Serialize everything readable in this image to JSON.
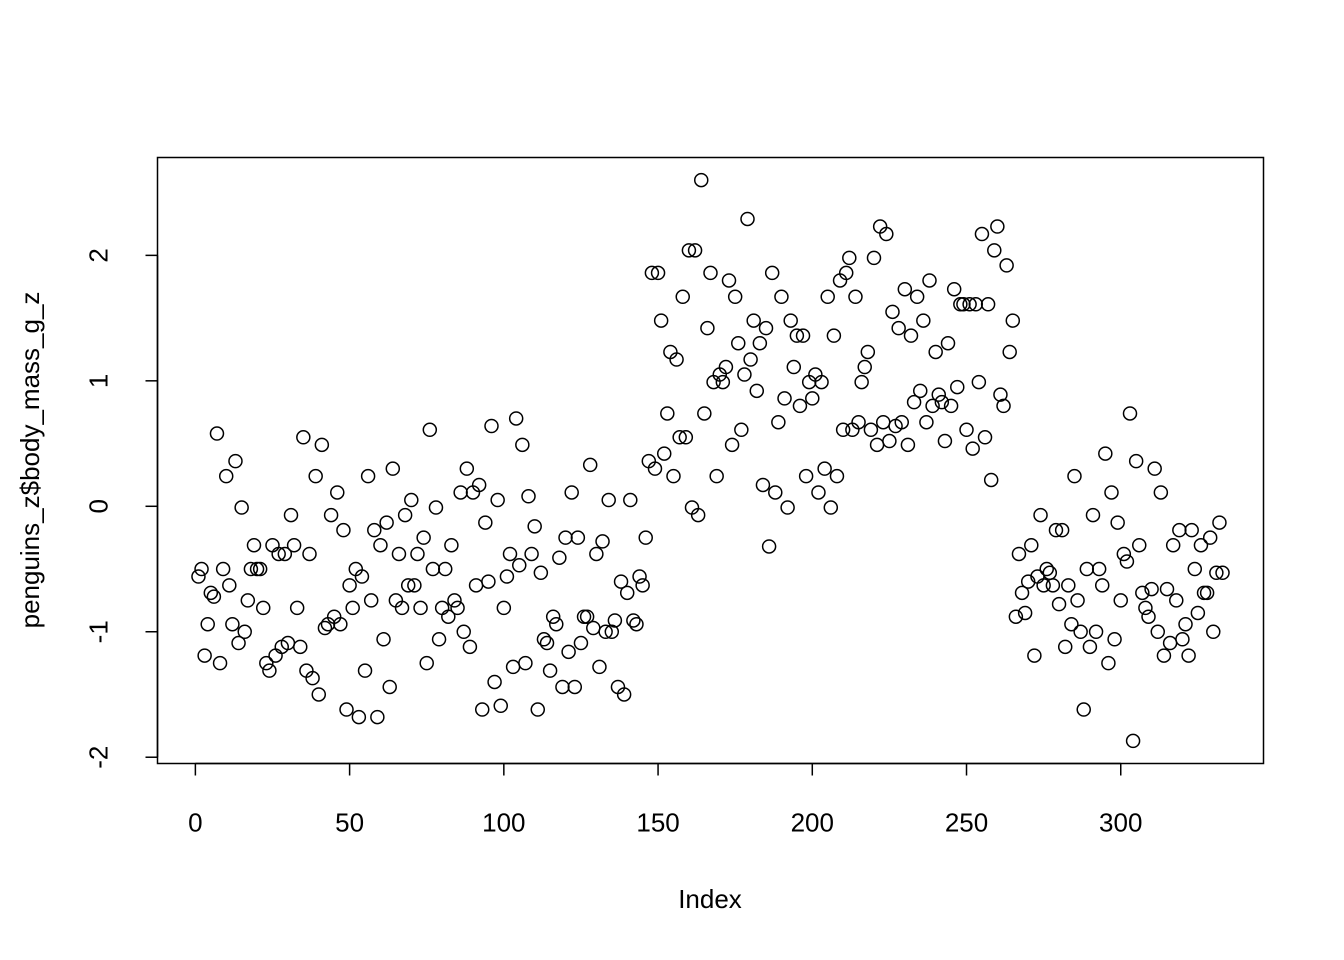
{
  "chart_data": {
    "type": "scatter",
    "x_label": "Index",
    "y_label": "penguins_z$body_mass_g_z",
    "xlim": [
      -12.28,
      346.28
    ],
    "ylim": [
      -2.05,
      2.78
    ],
    "xticks": [
      0,
      50,
      100,
      150,
      200,
      250,
      300
    ],
    "yticks": [
      -2,
      -1,
      0,
      1,
      2
    ],
    "color": "#000000",
    "x": [
      1,
      2,
      3,
      4,
      5,
      6,
      7,
      8,
      9,
      10,
      11,
      12,
      13,
      14,
      15,
      16,
      17,
      18,
      19,
      20,
      21,
      22,
      23,
      24,
      25,
      26,
      27,
      28,
      29,
      30,
      31,
      32,
      33,
      34,
      35,
      36,
      37,
      38,
      39,
      40,
      41,
      42,
      43,
      44,
      45,
      46,
      47,
      48,
      49,
      50,
      51,
      52,
      53,
      54,
      55,
      56,
      57,
      58,
      59,
      60,
      61,
      62,
      63,
      64,
      65,
      66,
      67,
      68,
      69,
      70,
      71,
      72,
      73,
      74,
      75,
      76,
      77,
      78,
      79,
      80,
      81,
      82,
      83,
      84,
      85,
      86,
      87,
      88,
      89,
      90,
      91,
      92,
      93,
      94,
      95,
      96,
      97,
      98,
      99,
      100,
      101,
      102,
      103,
      104,
      105,
      106,
      107,
      108,
      109,
      110,
      111,
      112,
      113,
      114,
      115,
      116,
      117,
      118,
      119,
      120,
      121,
      122,
      123,
      124,
      125,
      126,
      127,
      128,
      129,
      130,
      131,
      132,
      133,
      134,
      135,
      136,
      137,
      138,
      139,
      140,
      141,
      142,
      143,
      144,
      145,
      146,
      147,
      148,
      149,
      150,
      151,
      152,
      153,
      154,
      155,
      156,
      157,
      158,
      159,
      160,
      161,
      162,
      163,
      164,
      165,
      166,
      167,
      168,
      169,
      170,
      171,
      172,
      173,
      174,
      175,
      176,
      177,
      178,
      179,
      180,
      181,
      182,
      183,
      184,
      185,
      186,
      187,
      188,
      189,
      190,
      191,
      192,
      193,
      194,
      195,
      196,
      197,
      198,
      199,
      200,
      201,
      202,
      203,
      204,
      205,
      206,
      207,
      208,
      209,
      210,
      211,
      212,
      213,
      214,
      215,
      216,
      217,
      218,
      219,
      220,
      221,
      222,
      223,
      224,
      225,
      226,
      227,
      228,
      229,
      230,
      231,
      232,
      233,
      234,
      235,
      236,
      237,
      238,
      239,
      240,
      241,
      242,
      243,
      244,
      245,
      246,
      247,
      248,
      249,
      250,
      251,
      252,
      253,
      254,
      255,
      256,
      257,
      258,
      259,
      260,
      261,
      262,
      263,
      264,
      265,
      266,
      267,
      268,
      269,
      270,
      271,
      272,
      273,
      274,
      275,
      276,
      277,
      278,
      279,
      280,
      281,
      282,
      283,
      284,
      285,
      286,
      287,
      288,
      289,
      290,
      291,
      292,
      293,
      294,
      295,
      296,
      297,
      298,
      299,
      300,
      301,
      302,
      303,
      304,
      305,
      306,
      307,
      308,
      309,
      310,
      311,
      312,
      313,
      314,
      315,
      316,
      317,
      318,
      319,
      320,
      321,
      322,
      323,
      324,
      325,
      326,
      327,
      328,
      329,
      330,
      331,
      332,
      333
    ],
    "values": [
      -0.56,
      -0.5,
      -1.19,
      -0.94,
      -0.69,
      -0.72,
      0.58,
      -1.25,
      -0.5,
      0.24,
      -0.63,
      -0.94,
      0.36,
      -1.09,
      -0.01,
      -1.0,
      -0.75,
      -0.5,
      -0.31,
      -0.5,
      -0.5,
      -0.81,
      -1.25,
      -1.31,
      -0.31,
      -1.19,
      -0.38,
      -1.12,
      -0.38,
      -1.09,
      -0.07,
      -0.31,
      -0.81,
      -1.12,
      0.55,
      -1.31,
      -0.38,
      -1.37,
      0.24,
      -1.5,
      0.49,
      -0.97,
      -0.94,
      -0.07,
      -0.88,
      0.11,
      -0.94,
      -0.19,
      -1.62,
      -0.63,
      -0.81,
      -0.5,
      -1.68,
      -0.56,
      -1.31,
      0.24,
      -0.75,
      -0.19,
      -1.68,
      -0.31,
      -1.06,
      -0.13,
      -1.44,
      0.3,
      -0.75,
      -0.38,
      -0.81,
      -0.07,
      -0.63,
      0.05,
      -0.63,
      -0.38,
      -0.81,
      -0.25,
      -1.25,
      0.61,
      -0.5,
      -0.01,
      -1.06,
      -0.81,
      -0.5,
      -0.88,
      -0.31,
      -0.75,
      -0.81,
      0.11,
      -1.0,
      0.3,
      -1.12,
      0.11,
      -0.63,
      0.17,
      -1.62,
      -0.13,
      -0.6,
      0.64,
      -1.4,
      0.05,
      -1.59,
      -0.81,
      -0.56,
      -0.38,
      -1.28,
      0.7,
      -0.47,
      0.49,
      -1.25,
      0.08,
      -0.38,
      -0.16,
      -1.62,
      -0.53,
      -1.06,
      -1.09,
      -1.31,
      -0.88,
      -0.94,
      -0.41,
      -1.44,
      -0.25,
      -1.16,
      0.11,
      -1.44,
      -0.25,
      -1.09,
      -0.88,
      -0.88,
      0.33,
      -0.97,
      -0.38,
      -1.28,
      -0.28,
      -1.0,
      0.05,
      -1.0,
      -0.91,
      -1.44,
      -0.6,
      -1.5,
      -0.69,
      0.05,
      -0.91,
      -0.94,
      -0.56,
      -0.63,
      -0.25,
      0.36,
      1.86,
      0.3,
      1.86,
      1.48,
      0.42,
      0.74,
      1.23,
      0.24,
      1.17,
      0.55,
      1.67,
      0.55,
      2.04,
      -0.01,
      2.04,
      -0.07,
      2.6,
      0.74,
      1.42,
      1.86,
      0.99,
      0.24,
      1.05,
      0.99,
      1.11,
      1.8,
      0.49,
      1.67,
      1.3,
      0.61,
      1.05,
      2.29,
      1.17,
      1.48,
      0.92,
      1.3,
      0.17,
      1.42,
      -0.32,
      1.86,
      0.11,
      0.67,
      1.67,
      0.86,
      -0.01,
      1.48,
      1.11,
      1.36,
      0.8,
      1.36,
      0.24,
      0.99,
      0.86,
      1.05,
      0.11,
      0.99,
      0.3,
      1.67,
      -0.01,
      1.36,
      0.24,
      1.8,
      0.61,
      1.86,
      1.98,
      0.61,
      1.67,
      0.67,
      0.99,
      1.11,
      1.23,
      0.61,
      1.98,
      0.49,
      2.23,
      0.67,
      2.17,
      0.52,
      1.55,
      0.64,
      1.42,
      0.67,
      1.73,
      0.49,
      1.36,
      0.83,
      1.67,
      0.92,
      1.48,
      0.67,
      1.8,
      0.8,
      1.23,
      0.89,
      0.83,
      0.52,
      1.3,
      0.8,
      1.73,
      0.95,
      1.61,
      1.61,
      0.61,
      1.61,
      0.46,
      1.61,
      0.99,
      2.17,
      0.55,
      1.61,
      0.21,
      2.04,
      2.23,
      0.89,
      0.8,
      1.92,
      1.23,
      1.48,
      -0.88,
      -0.38,
      -0.69,
      -0.85,
      -0.6,
      -0.31,
      -1.19,
      -0.56,
      -0.07,
      -0.63,
      -0.5,
      -0.53,
      -0.63,
      -0.19,
      -0.78,
      -0.19,
      -1.12,
      -0.63,
      -0.94,
      0.24,
      -0.75,
      -1.0,
      -1.62,
      -0.5,
      -1.12,
      -0.07,
      -1.0,
      -0.5,
      -0.63,
      0.42,
      -1.25,
      0.11,
      -1.06,
      -0.13,
      -0.75,
      -0.38,
      -0.44,
      0.74,
      -1.87,
      0.36,
      -0.31,
      -0.69,
      -0.81,
      -0.88,
      -0.66,
      0.3,
      -1.0,
      0.11,
      -1.19,
      -0.66,
      -1.09,
      -0.31,
      -0.75,
      -0.19,
      -1.06,
      -0.94,
      -1.19,
      -0.19,
      -0.5,
      -0.85,
      -0.31,
      -0.69,
      -0.69,
      -0.25,
      -1.0,
      -0.53,
      -0.13,
      -0.53
    ]
  }
}
